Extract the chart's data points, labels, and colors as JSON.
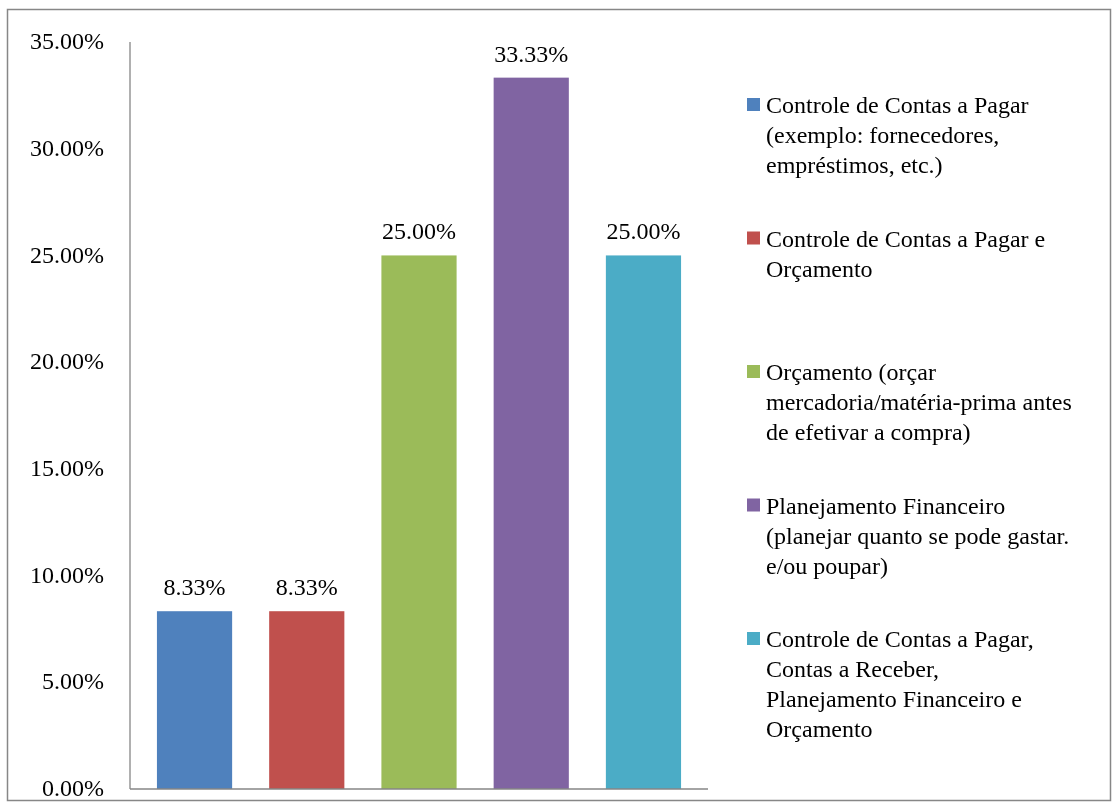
{
  "chart_data": {
    "type": "bar",
    "categories": [
      null
    ],
    "series": [
      {
        "name": "Controle de Contas a Pagar (exemplo: fornecedores, empréstimos, etc.)",
        "color": "#4f81bd",
        "values": [
          8.33
        ],
        "value_labels": [
          "8.33%"
        ]
      },
      {
        "name": "Controle de Contas a Pagar e Orçamento",
        "color": "#c0504d",
        "values": [
          8.33
        ],
        "value_labels": [
          "8.33%"
        ]
      },
      {
        "name": "Orçamento (orçar mercadoria/matéria-prima antes de efetivar a compra)",
        "color": "#9bbb59",
        "values": [
          25
        ],
        "value_labels": [
          "25.00%"
        ]
      },
      {
        "name": "Planejamento Financeiro (planejar quanto se pode gastar. e/ou poupar)",
        "color": "#8064a2",
        "values": [
          33.33
        ],
        "value_labels": [
          "33.33%"
        ]
      },
      {
        "name": "Controle de Contas a Pagar, Contas a Receber, Planejamento Financeiro e Orçamento",
        "color": "#4bacc6",
        "values": [
          25
        ],
        "value_labels": [
          "25.00%"
        ]
      }
    ],
    "ylim": [
      0,
      35
    ],
    "yticks": [
      {
        "value": 0,
        "label": "0.00%"
      },
      {
        "value": 5,
        "label": "5.00%"
      },
      {
        "value": 10,
        "label": "10.00%"
      },
      {
        "value": 15,
        "label": "15.00%"
      },
      {
        "value": 20,
        "label": "20.00%"
      },
      {
        "value": 25,
        "label": "25.00%"
      },
      {
        "value": 30,
        "label": "30.00%"
      },
      {
        "value": 35,
        "label": "35.00%"
      }
    ],
    "legend": "right"
  }
}
